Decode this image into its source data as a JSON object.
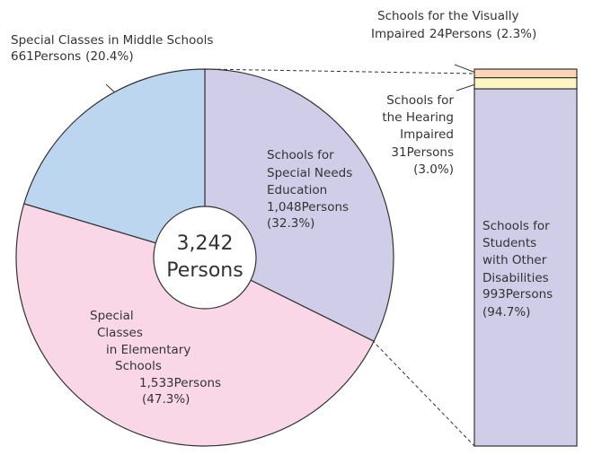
{
  "chart_data": [
    {
      "type": "pie",
      "categories": [
        [
          "Schools for",
          "Special Needs",
          "Education"
        ],
        [
          "Special",
          "Classes",
          "in Elementary",
          "Schools"
        ],
        [
          "Special Classes in Middle Schools"
        ]
      ],
      "values": [
        1048,
        1533,
        661
      ],
      "value_labels": [
        "1,048Persons",
        "1,533Persons",
        "661Persons"
      ],
      "percents": [
        32.3,
        47.3,
        20.4
      ],
      "percent_labels": [
        "(32.3%)",
        "(47.3%)",
        "(20.4%)"
      ],
      "colors": [
        "#d0cde9",
        "#f9d7e7",
        "#bdd6ef"
      ],
      "total": 3242,
      "total_label": "3,242",
      "total_unit": "Persons"
    },
    {
      "type": "stacked-bar",
      "categories": [
        [
          "Schools for the Visually",
          "Impaired"
        ],
        [
          "Schools for",
          "the Hearing",
          "Impaired"
        ],
        [
          "Schools for",
          "Students",
          "with Other",
          "Disabilities"
        ]
      ],
      "values": [
        24,
        31,
        993
      ],
      "value_labels": [
        "24Persons",
        "31Persons",
        "993Persons"
      ],
      "percents": [
        2.3,
        3.0,
        94.7
      ],
      "percent_labels": [
        "(2.3%)",
        "(3.0%)",
        "(94.7%)"
      ],
      "colors": [
        "#fcd5b6",
        "#fdf6c3",
        "#d0cde9"
      ]
    }
  ]
}
